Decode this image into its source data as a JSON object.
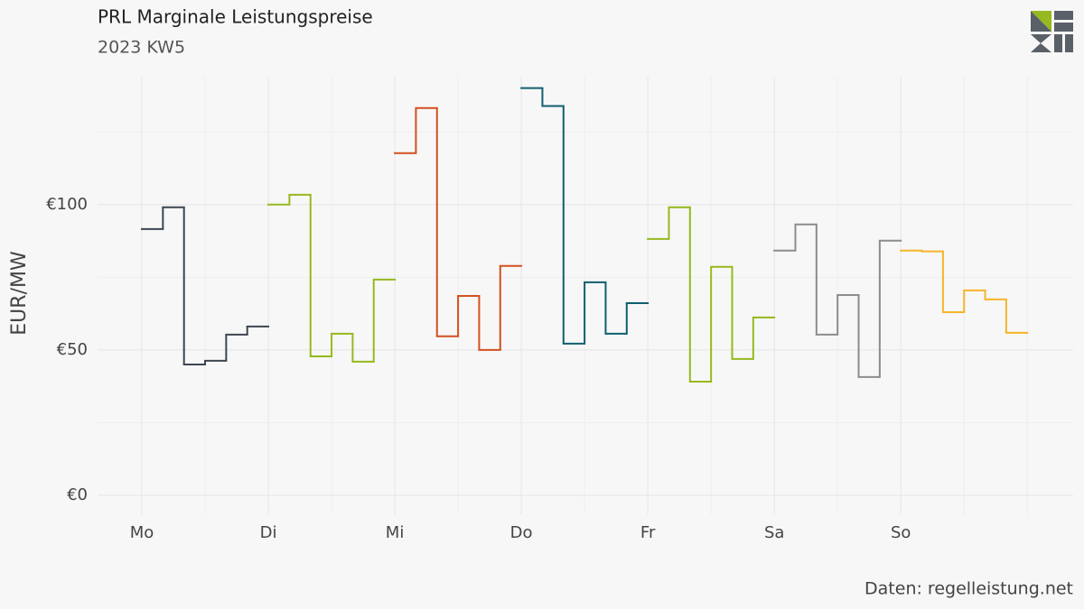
{
  "chart_data": {
    "type": "step",
    "title": "PRL Marginale Leistungspreise",
    "subtitle": "2023 KW5",
    "ylabel": "EUR/MW",
    "source": "Daten: regelleistung.net",
    "xlim": [
      -8.4,
      176.7
    ],
    "xticks": [
      {
        "value": 0,
        "label": "Mo"
      },
      {
        "value": 24,
        "label": "Di"
      },
      {
        "value": 48,
        "label": "Mi"
      },
      {
        "value": 72,
        "label": "Do"
      },
      {
        "value": 96,
        "label": "Fr"
      },
      {
        "value": 120,
        "label": "Sa"
      },
      {
        "value": 144,
        "label": "So"
      }
    ],
    "xgrid_minor": [
      12,
      36,
      60,
      84,
      108,
      132,
      156,
      168
    ],
    "ylim": [
      -6.5,
      144
    ],
    "yticks": [
      {
        "value": 0,
        "label": "€0"
      },
      {
        "value": 50,
        "label": "€50"
      },
      {
        "value": 100,
        "label": "€100"
      }
    ],
    "ygrid_minor": [
      25,
      75,
      125
    ],
    "grid": true,
    "series": [
      {
        "color": "#3d4650",
        "x": [
          0,
          4,
          8,
          12,
          16,
          20
        ],
        "values": [
          91.6,
          99.1,
          45.0,
          46.3,
          55.3,
          58.1
        ]
      },
      {
        "color": "#95b91e",
        "x": [
          24,
          28,
          32,
          36,
          40,
          44
        ],
        "values": [
          100,
          103.4,
          47.8,
          55.6,
          46.0,
          74.2
        ]
      },
      {
        "color": "#d4501f",
        "x": [
          48,
          52,
          56,
          60,
          64,
          68
        ],
        "values": [
          117.7,
          133.2,
          54.7,
          68.6,
          50.0,
          78.9
        ]
      },
      {
        "color": "#0f5f6e",
        "x": [
          72,
          76,
          80,
          84,
          88,
          92
        ],
        "values": [
          140.1,
          133.9,
          52.2,
          73.3,
          55.6,
          66.1
        ]
      },
      {
        "color": "#95b91e",
        "x": [
          96,
          100,
          104,
          108,
          112,
          116
        ],
        "values": [
          88.2,
          99.1,
          39.1,
          78.6,
          46.9,
          61.2
        ]
      },
      {
        "color": "#8c8c8c",
        "x": [
          120,
          124,
          128,
          132,
          136,
          140
        ],
        "values": [
          84.2,
          93.2,
          55.3,
          68.9,
          40.7,
          87.6
        ]
      },
      {
        "color": "#f5b52a",
        "x": [
          144,
          148,
          152,
          156,
          160,
          164
        ],
        "values": [
          84.2,
          83.9,
          63.0,
          70.5,
          67.4,
          55.9
        ]
      }
    ]
  }
}
